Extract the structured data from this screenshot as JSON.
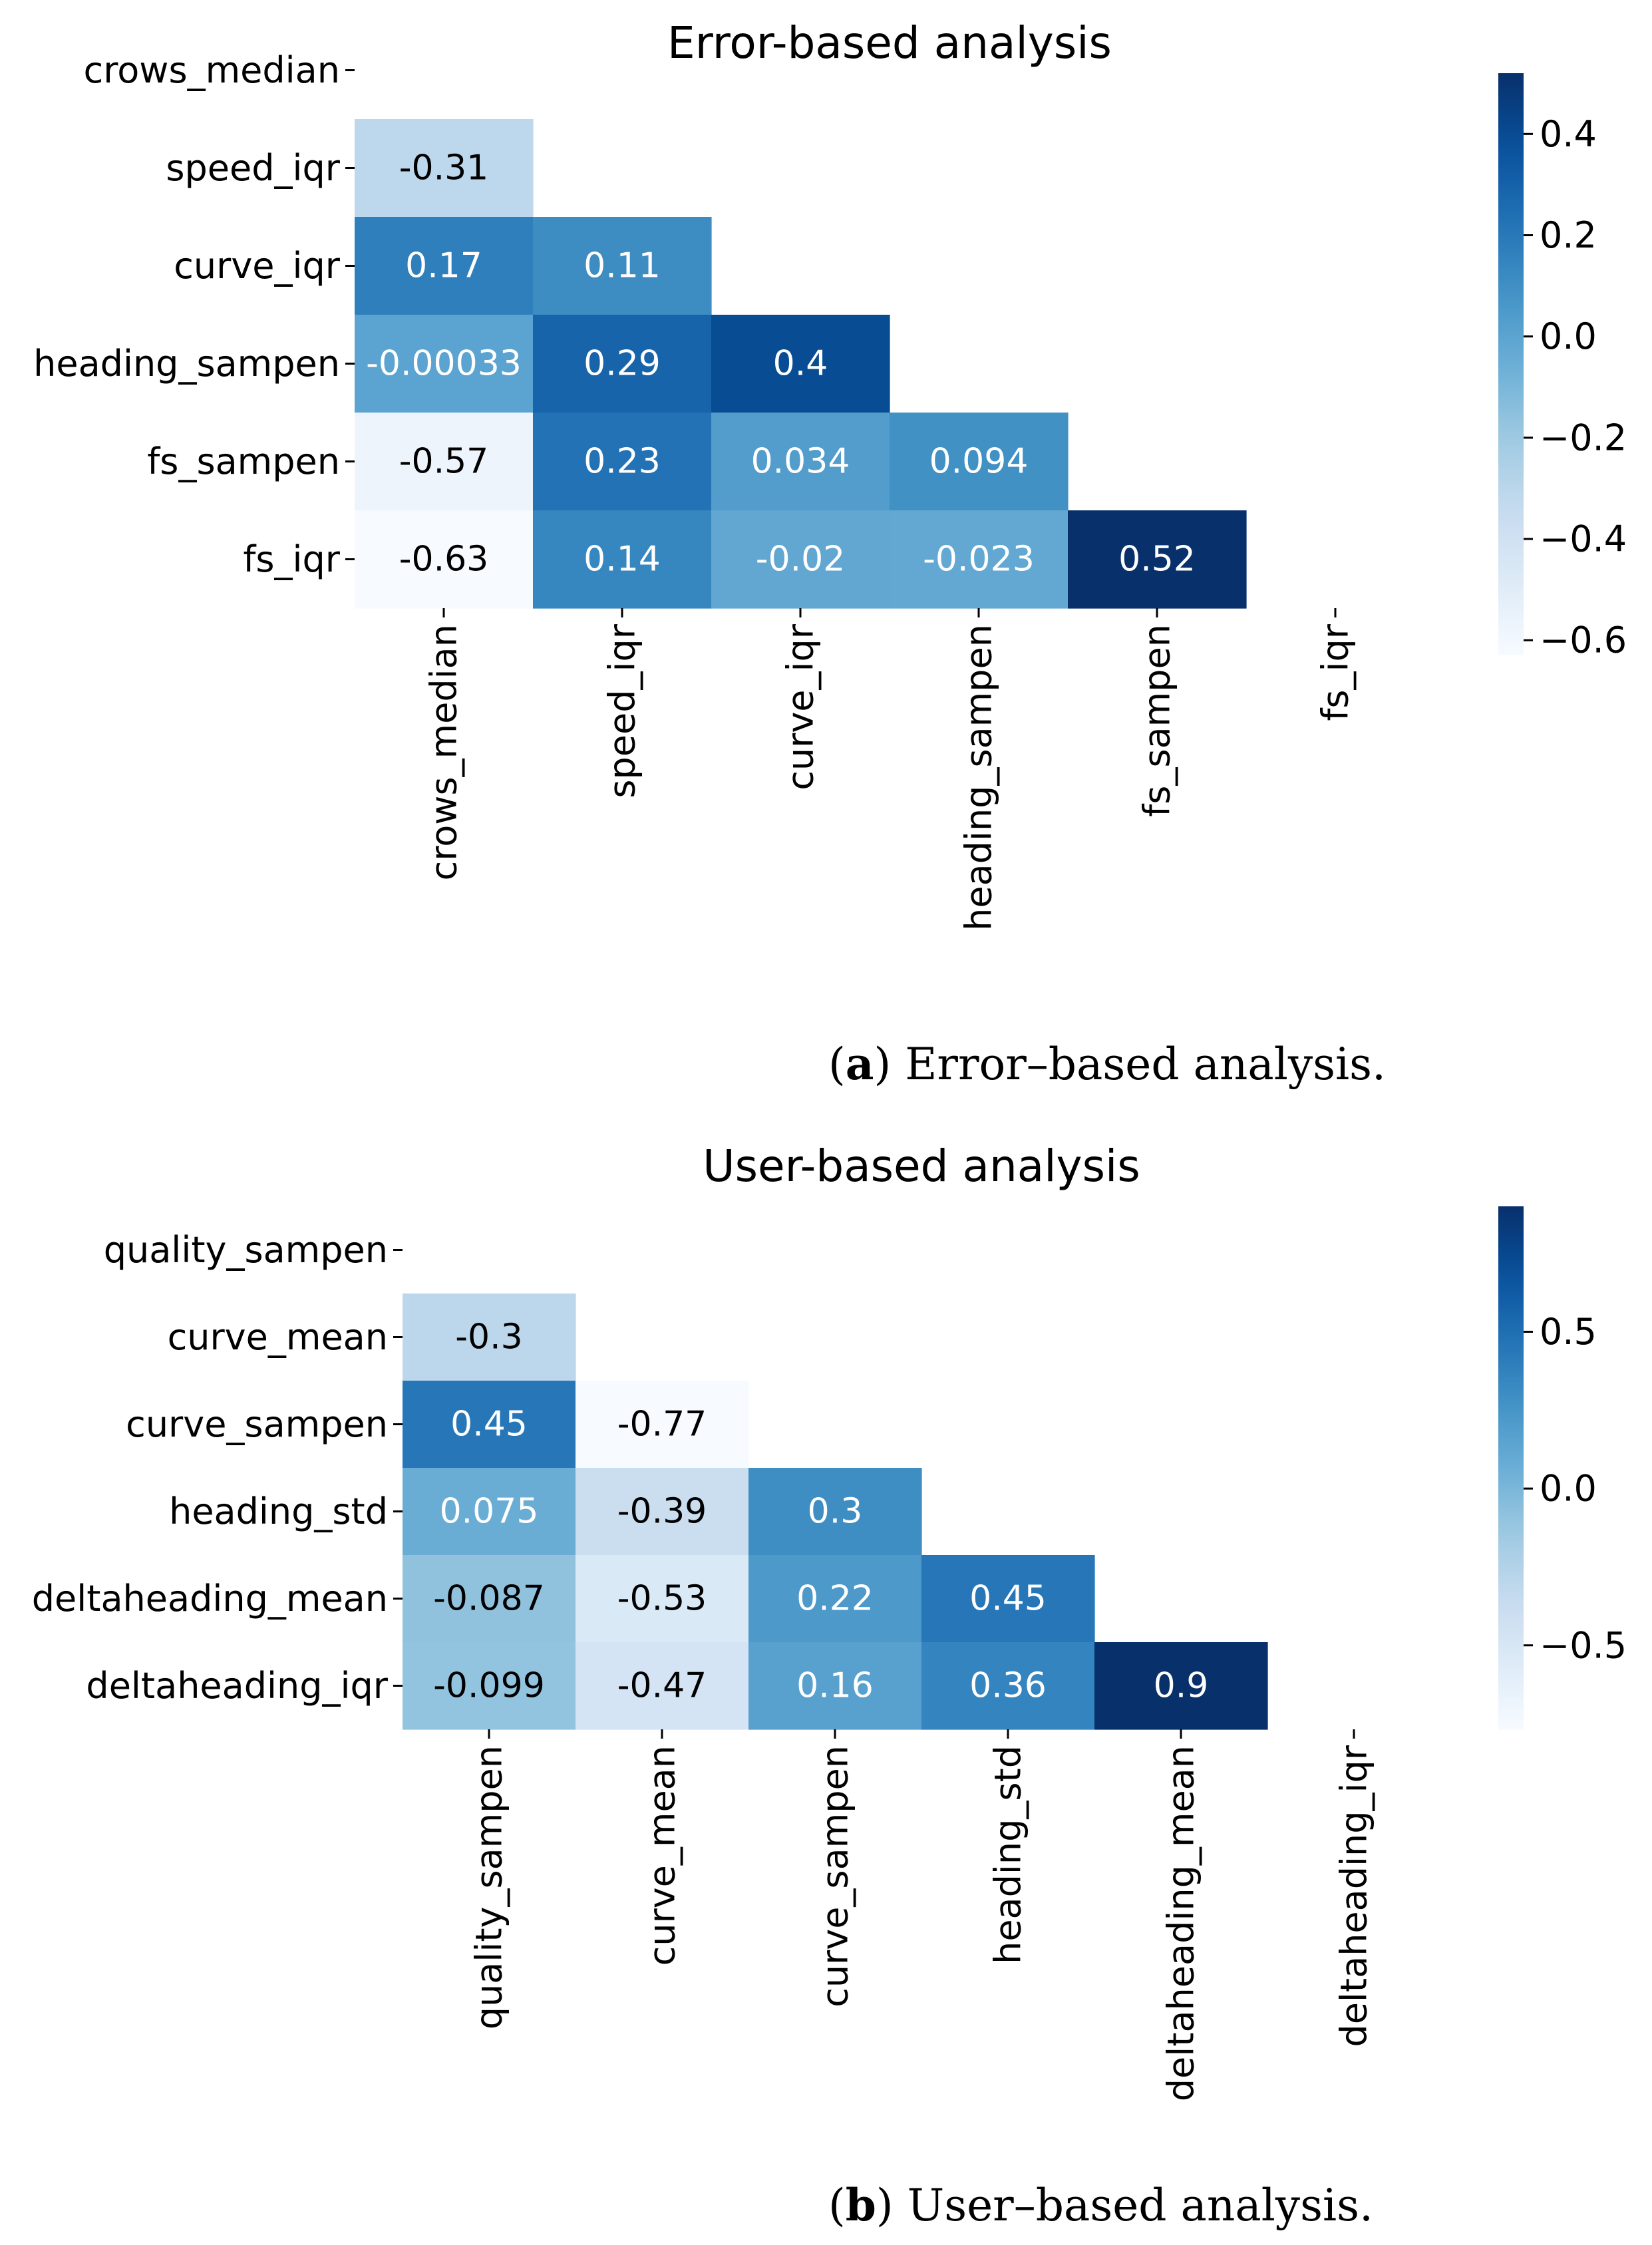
{
  "figure": {
    "captions": [
      {
        "letter": "a",
        "text": ") Error–based analysis."
      },
      {
        "letter": "b",
        "text": ") User–based analysis."
      }
    ]
  },
  "chart_data": [
    {
      "type": "heatmap",
      "title": "Error-based analysis",
      "labels": [
        "crows_median",
        "speed_iqr",
        "curve_iqr",
        "heading_sampen",
        "fs_sampen",
        "fs_iqr"
      ],
      "masked": "upper-triangle-and-diagonal",
      "values": [
        [
          null,
          null,
          null,
          null,
          null,
          null
        ],
        [
          -0.31,
          null,
          null,
          null,
          null,
          null
        ],
        [
          0.17,
          0.11,
          null,
          null,
          null,
          null
        ],
        [
          -0.00033,
          0.29,
          0.4,
          null,
          null,
          null
        ],
        [
          -0.57,
          0.23,
          0.034,
          0.094,
          null,
          null
        ],
        [
          -0.63,
          0.14,
          -0.02,
          -0.023,
          0.52,
          null
        ]
      ],
      "annotations": [
        [
          null,
          null,
          null,
          null,
          null,
          null
        ],
        [
          "-0.31",
          null,
          null,
          null,
          null,
          null
        ],
        [
          "0.17",
          "0.11",
          null,
          null,
          null,
          null
        ],
        [
          "-0.00033",
          "0.29",
          "0.4",
          null,
          null,
          null
        ],
        [
          "-0.57",
          "0.23",
          "0.034",
          "0.094",
          null,
          null
        ],
        [
          "-0.63",
          "0.14",
          "-0.02",
          "-0.023",
          "0.52",
          null
        ]
      ],
      "colormap": "Blues",
      "colorbar": {
        "min": -0.63,
        "max": 0.52,
        "ticks": [
          -0.6,
          -0.4,
          -0.2,
          0.0,
          0.2,
          0.4
        ],
        "tick_labels": [
          "−0.6",
          "−0.4",
          "−0.2",
          "0.0",
          "0.2",
          "0.4"
        ]
      }
    },
    {
      "type": "heatmap",
      "title": "User-based analysis",
      "labels": [
        "quality_sampen",
        "curve_mean",
        "curve_sampen",
        "heading_std",
        "deltaheading_mean",
        "deltaheading_iqr"
      ],
      "masked": "upper-triangle-and-diagonal",
      "values": [
        [
          null,
          null,
          null,
          null,
          null,
          null
        ],
        [
          -0.3,
          null,
          null,
          null,
          null,
          null
        ],
        [
          0.45,
          -0.77,
          null,
          null,
          null,
          null
        ],
        [
          0.075,
          -0.39,
          0.3,
          null,
          null,
          null
        ],
        [
          -0.087,
          -0.53,
          0.22,
          0.45,
          null,
          null
        ],
        [
          -0.099,
          -0.47,
          0.16,
          0.36,
          0.9,
          null
        ]
      ],
      "annotations": [
        [
          null,
          null,
          null,
          null,
          null,
          null
        ],
        [
          "-0.3",
          null,
          null,
          null,
          null,
          null
        ],
        [
          "0.45",
          "-0.77",
          null,
          null,
          null,
          null
        ],
        [
          "0.075",
          "-0.39",
          "0.3",
          null,
          null,
          null
        ],
        [
          "-0.087",
          "-0.53",
          "0.22",
          "0.45",
          null,
          null
        ],
        [
          "-0.099",
          "-0.47",
          "0.16",
          "0.36",
          "0.9",
          null
        ]
      ],
      "colormap": "Blues",
      "colorbar": {
        "min": -0.77,
        "max": 0.9,
        "ticks": [
          -0.5,
          0.0,
          0.5
        ],
        "tick_labels": [
          "−0.5",
          "0.0",
          "0.5"
        ]
      }
    }
  ]
}
